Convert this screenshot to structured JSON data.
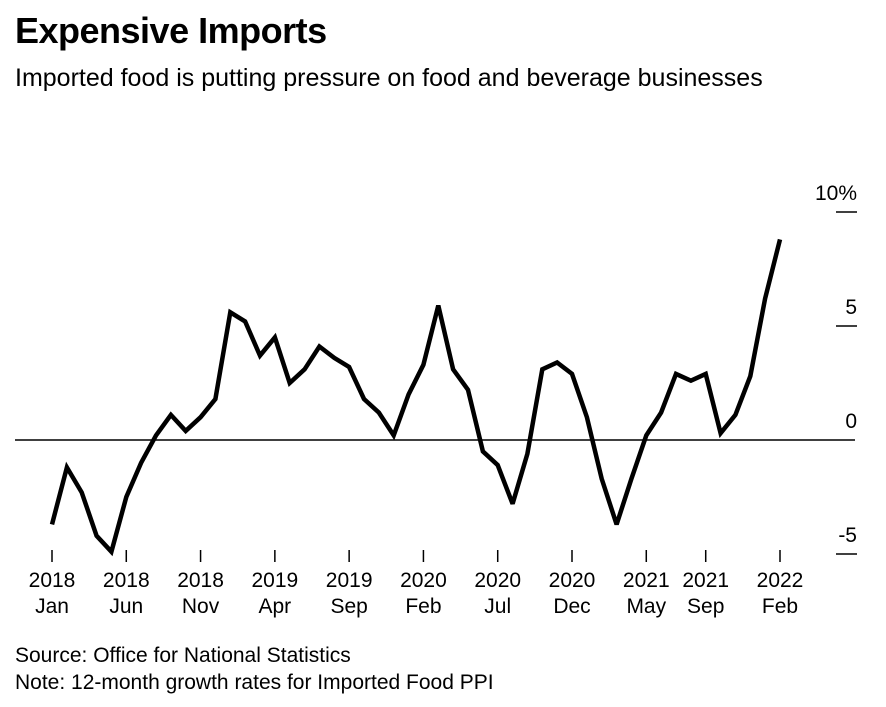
{
  "header": {
    "title": "Expensive Imports",
    "subtitle": "Imported food is putting pressure on food and beverage businesses"
  },
  "footer": {
    "source": "Source: Office for National Statistics",
    "note": "Note: 12-month growth rates for Imported Food PPI"
  },
  "chart_data": {
    "type": "line",
    "title": "Expensive Imports",
    "subtitle": "Imported food is putting pressure on food and beverage businesses",
    "xlabel": "",
    "ylabel": "",
    "ylim": [
      -5,
      10
    ],
    "y_ticks": [
      {
        "value": 10,
        "label": "10%"
      },
      {
        "value": 5,
        "label": "5"
      },
      {
        "value": 0,
        "label": "0"
      },
      {
        "value": -5,
        "label": "-5"
      }
    ],
    "x_ticks": [
      {
        "index": 0,
        "year": "2018",
        "month": "Jan"
      },
      {
        "index": 5,
        "year": "2018",
        "month": "Jun"
      },
      {
        "index": 10,
        "year": "2018",
        "month": "Nov"
      },
      {
        "index": 15,
        "year": "2019",
        "month": "Apr"
      },
      {
        "index": 20,
        "year": "2019",
        "month": "Sep"
      },
      {
        "index": 25,
        "year": "2020",
        "month": "Feb"
      },
      {
        "index": 30,
        "year": "2020",
        "month": "Jul"
      },
      {
        "index": 35,
        "year": "2020",
        "month": "Dec"
      },
      {
        "index": 40,
        "year": "2021",
        "month": "May"
      },
      {
        "index": 44,
        "year": "2021",
        "month": "Sep"
      },
      {
        "index": 49,
        "year": "2022",
        "month": "Feb"
      }
    ],
    "x": [
      "2018-01",
      "2018-02",
      "2018-03",
      "2018-04",
      "2018-05",
      "2018-06",
      "2018-07",
      "2018-08",
      "2018-09",
      "2018-10",
      "2018-11",
      "2018-12",
      "2019-01",
      "2019-02",
      "2019-03",
      "2019-04",
      "2019-05",
      "2019-06",
      "2019-07",
      "2019-08",
      "2019-09",
      "2019-10",
      "2019-11",
      "2019-12",
      "2020-01",
      "2020-02",
      "2020-03",
      "2020-04",
      "2020-05",
      "2020-06",
      "2020-07",
      "2020-08",
      "2020-09",
      "2020-10",
      "2020-11",
      "2020-12",
      "2021-01",
      "2021-02",
      "2021-03",
      "2021-04",
      "2021-05",
      "2021-06",
      "2021-07",
      "2021-08",
      "2021-09",
      "2021-10",
      "2021-11",
      "2021-12",
      "2022-01",
      "2022-02"
    ],
    "series": [
      {
        "values": [
          -3.7,
          -1.2,
          -2.3,
          -4.2,
          -4.9,
          -2.5,
          -1.0,
          0.2,
          1.1,
          0.4,
          1.0,
          1.8,
          5.6,
          5.2,
          3.7,
          4.5,
          2.5,
          3.1,
          4.1,
          3.6,
          3.2,
          1.8,
          1.2,
          0.2,
          2.0,
          3.3,
          5.9,
          3.1,
          2.2,
          -0.5,
          -1.1,
          -2.8,
          -0.6,
          3.1,
          3.4,
          2.9,
          1.0,
          -1.7,
          -3.7,
          -1.7,
          0.2,
          1.2,
          2.9,
          2.6,
          2.9,
          0.3,
          1.1,
          2.8,
          6.2,
          8.8
        ],
        "color": "#000000"
      }
    ],
    "grid": false,
    "zero_line": true
  }
}
